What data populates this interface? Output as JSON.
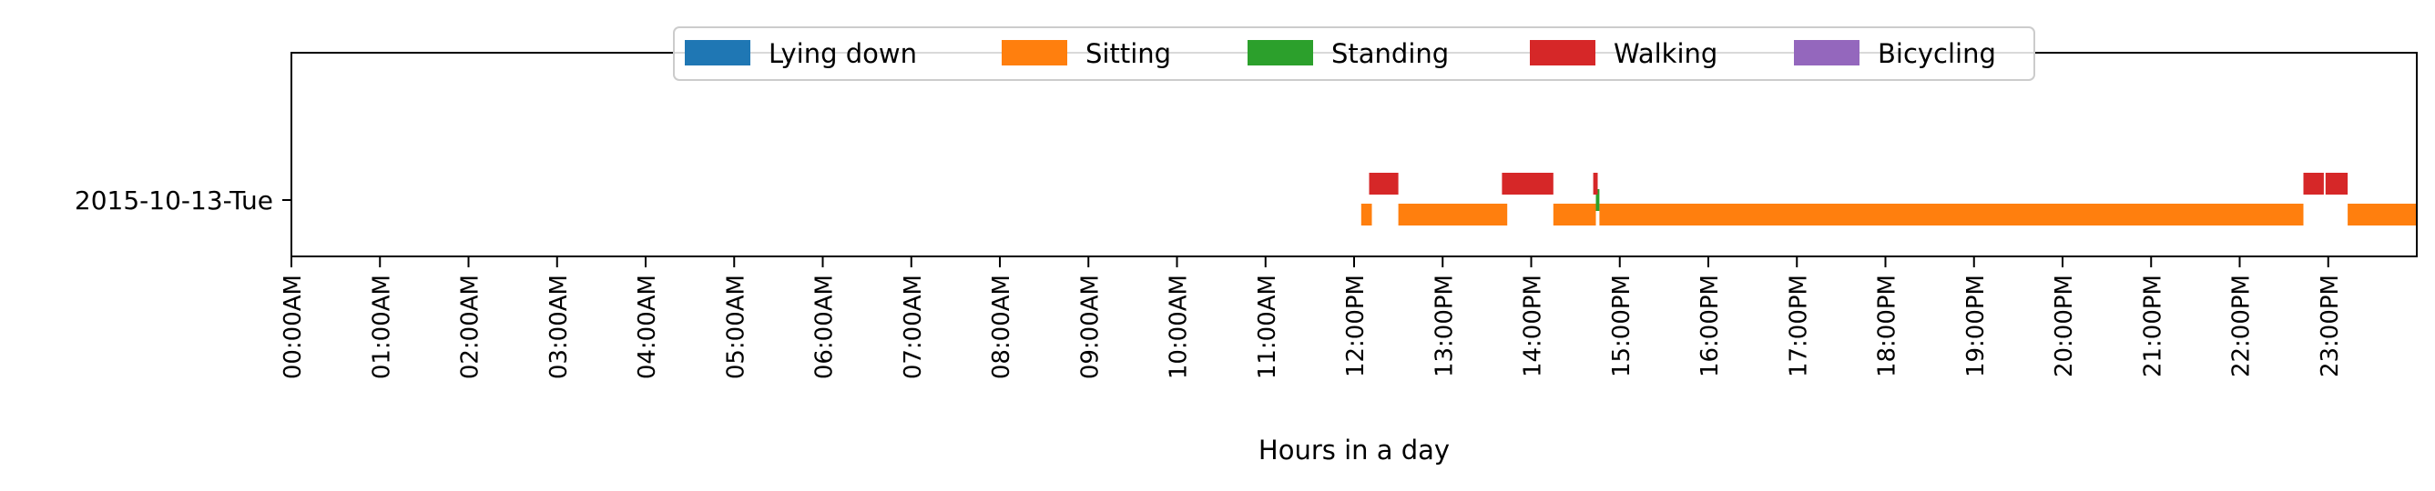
{
  "chart_data": {
    "type": "timeline",
    "xlabel": "Hours in a day",
    "xlim": [
      0,
      24
    ],
    "categories": [
      "2015-10-13-Tue"
    ],
    "x_tick_labels": [
      "00:00AM",
      "01:00AM",
      "02:00AM",
      "03:00AM",
      "04:00AM",
      "05:00AM",
      "06:00AM",
      "07:00AM",
      "08:00AM",
      "09:00AM",
      "10:00AM",
      "11:00AM",
      "12:00PM",
      "13:00PM",
      "14:00PM",
      "15:00PM",
      "16:00PM",
      "17:00PM",
      "18:00PM",
      "19:00PM",
      "20:00PM",
      "21:00PM",
      "22:00PM",
      "23:00PM"
    ],
    "legend_position": "top-center",
    "series": [
      {
        "name": "Lying down",
        "color": "#1f77b4",
        "segments": []
      },
      {
        "name": "Sitting",
        "color": "#ff7f0e",
        "segments": [
          [
            12.08,
            12.2
          ],
          [
            12.5,
            13.73
          ],
          [
            14.25,
            14.73
          ],
          [
            14.77,
            22.72
          ],
          [
            23.22,
            24.0
          ]
        ]
      },
      {
        "name": "Standing",
        "color": "#2ca02c",
        "segments": [
          [
            14.73,
            14.77
          ]
        ]
      },
      {
        "name": "Walking",
        "color": "#d62728",
        "segments": [
          [
            12.17,
            12.5
          ],
          [
            13.67,
            14.25
          ],
          [
            14.7,
            14.75
          ],
          [
            22.72,
            22.95
          ],
          [
            22.97,
            23.22
          ]
        ]
      },
      {
        "name": "Bicycling",
        "color": "#9467bd",
        "segments": []
      }
    ]
  }
}
